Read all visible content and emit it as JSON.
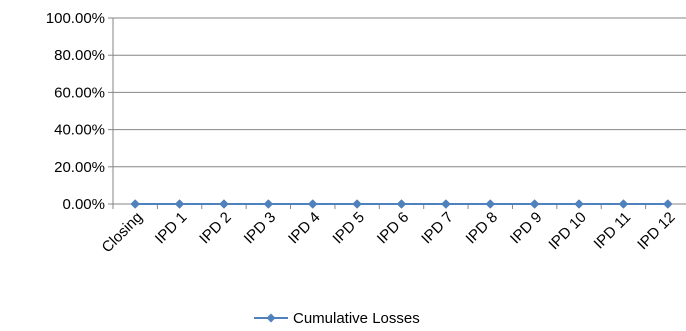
{
  "chart_data": {
    "type": "line",
    "categories": [
      "Closing",
      "IPD 1",
      "IPD 2",
      "IPD 3",
      "IPD 4",
      "IPD 5",
      "IPD 6",
      "IPD 7",
      "IPD 8",
      "IPD 9",
      "IPD 10",
      "IPD 11",
      "IPD 12"
    ],
    "series": [
      {
        "name": "Cumulative Losses",
        "values": [
          0,
          0,
          0,
          0,
          0,
          0,
          0,
          0,
          0,
          0,
          0,
          0,
          0
        ],
        "color": "#4f81bd"
      }
    ],
    "ylim": [
      0,
      1
    ],
    "yticks": [
      {
        "value": 0,
        "label": "0.00%"
      },
      {
        "value": 0.2,
        "label": "20.00%"
      },
      {
        "value": 0.4,
        "label": "40.00%"
      },
      {
        "value": 0.6,
        "label": "60.00%"
      },
      {
        "value": 0.8,
        "label": "80.00%"
      },
      {
        "value": 1,
        "label": "100.00%"
      }
    ],
    "grid": true,
    "legend": "bottom",
    "title": "",
    "xlabel": "",
    "ylabel": ""
  }
}
